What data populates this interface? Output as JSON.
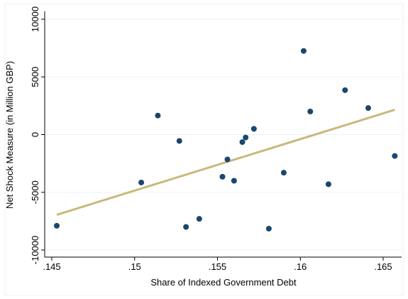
{
  "chart_data": {
    "type": "scatter",
    "xlabel": "Share of Indexed Government Debt",
    "ylabel": "Net Shock Measure (in Million GBP)",
    "xlim": [
      0.145,
      0.165
    ],
    "ylim": [
      -10000,
      10000
    ],
    "xticks": [
      {
        "value": 0.145,
        "label": ".145"
      },
      {
        "value": 0.15,
        "label": ".15"
      },
      {
        "value": 0.155,
        "label": ".155"
      },
      {
        "value": 0.16,
        "label": ".16"
      },
      {
        "value": 0.165,
        "label": ".165"
      }
    ],
    "yticks": [
      -10000,
      -5000,
      0,
      5000,
      10000
    ],
    "grid": true,
    "series": [
      {
        "color": "#1a476f",
        "x": [
          0.1453,
          0.1504,
          0.1514,
          0.1527,
          0.1531,
          0.1539,
          0.1553,
          0.1556,
          0.156,
          0.1565,
          0.1567,
          0.1572,
          0.1581,
          0.159,
          0.1602,
          0.1606,
          0.1617,
          0.1627,
          0.1641,
          0.1657
        ],
        "values": [
          -7900,
          -4150,
          1650,
          -550,
          -8000,
          -7300,
          -3650,
          -2150,
          -4000,
          -650,
          -250,
          500,
          -8150,
          -3300,
          7250,
          2000,
          -4300,
          3850,
          2300,
          -1850
        ]
      }
    ],
    "fit_line": {
      "color": "#c9b97a",
      "x": [
        0.1453,
        0.1657
      ],
      "values": [
        -6950,
        2150
      ]
    }
  }
}
